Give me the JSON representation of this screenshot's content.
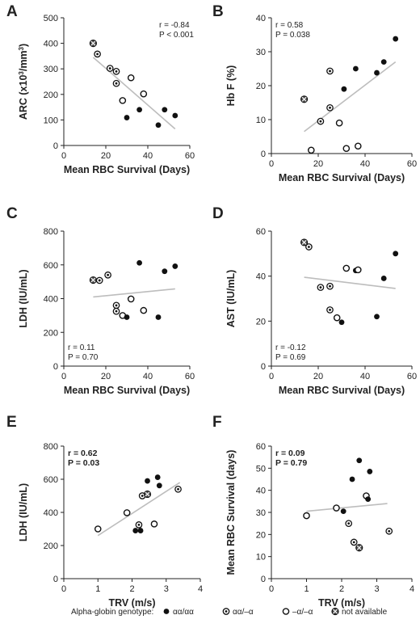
{
  "legend": {
    "title": "Alpha-globin genotype:",
    "items": [
      {
        "key": "aa_aa",
        "label": "αα/αα"
      },
      {
        "key": "aa_a",
        "label": "αα/–α"
      },
      {
        "key": "a_a",
        "label": "–α/–α"
      },
      {
        "key": "na",
        "label": "not available"
      }
    ]
  },
  "chart_data": [
    {
      "panel": "A",
      "type": "scatter",
      "xlabel": "Mean RBC Survival (Days)",
      "ylabel_parts": [
        "ARC (x10",
        "3",
        "/mm",
        "3",
        ")"
      ],
      "xlim": [
        0,
        60
      ],
      "ylim": [
        0,
        500
      ],
      "xticks": [
        0,
        20,
        40,
        60
      ],
      "yticks": [
        0,
        100,
        200,
        300,
        400,
        500
      ],
      "stats": [
        "r  = -0.84",
        "P < 0.001"
      ],
      "stats_position": "top-right",
      "stats_bold": false,
      "fit": [
        [
          14,
          345
        ],
        [
          53,
          65
        ]
      ],
      "points": [
        {
          "x": 14,
          "y": 400,
          "g": "na"
        },
        {
          "x": 16,
          "y": 358,
          "g": "aa_a"
        },
        {
          "x": 22,
          "y": 302,
          "g": "aa_a"
        },
        {
          "x": 25,
          "y": 290,
          "g": "aa_a"
        },
        {
          "x": 25,
          "y": 243,
          "g": "aa_a"
        },
        {
          "x": 28,
          "y": 176,
          "g": "a_a"
        },
        {
          "x": 30,
          "y": 109,
          "g": "aa_aa"
        },
        {
          "x": 32,
          "y": 265,
          "g": "a_a"
        },
        {
          "x": 36,
          "y": 140,
          "g": "aa_aa"
        },
        {
          "x": 38,
          "y": 202,
          "g": "a_a"
        },
        {
          "x": 45,
          "y": 80,
          "g": "aa_aa"
        },
        {
          "x": 48,
          "y": 140,
          "g": "aa_aa"
        },
        {
          "x": 53,
          "y": 117,
          "g": "aa_aa"
        }
      ]
    },
    {
      "panel": "B",
      "type": "scatter",
      "xlabel": "Mean RBC Survival (Days)",
      "ylabel_parts": [
        "Hb F (%)"
      ],
      "xlim": [
        0,
        60
      ],
      "ylim": [
        0,
        40
      ],
      "xticks": [
        0,
        20,
        40,
        60
      ],
      "yticks": [
        0,
        10,
        20,
        30,
        40
      ],
      "stats": [
        "r  = 0.58",
        "P = 0.038"
      ],
      "stats_position": "top-left",
      "stats_bold": false,
      "fit": [
        [
          14,
          6.5
        ],
        [
          53,
          27
        ]
      ],
      "points": [
        {
          "x": 14,
          "y": 16,
          "g": "na"
        },
        {
          "x": 17,
          "y": 1,
          "g": "a_a"
        },
        {
          "x": 21,
          "y": 9.5,
          "g": "aa_a"
        },
        {
          "x": 25,
          "y": 24.3,
          "g": "aa_a"
        },
        {
          "x": 25,
          "y": 13.5,
          "g": "aa_a"
        },
        {
          "x": 29,
          "y": 9,
          "g": "a_a"
        },
        {
          "x": 31,
          "y": 19,
          "g": "aa_aa"
        },
        {
          "x": 32,
          "y": 1.5,
          "g": "a_a"
        },
        {
          "x": 36,
          "y": 25,
          "g": "aa_aa"
        },
        {
          "x": 37,
          "y": 2.2,
          "g": "a_a"
        },
        {
          "x": 45,
          "y": 23.8,
          "g": "aa_aa"
        },
        {
          "x": 48,
          "y": 27,
          "g": "aa_aa"
        },
        {
          "x": 53,
          "y": 33.8,
          "g": "aa_aa"
        }
      ]
    },
    {
      "panel": "C",
      "type": "scatter",
      "xlabel": "Mean RBC Survival (Days)",
      "ylabel_parts": [
        "LDH (IU/mL)"
      ],
      "xlim": [
        0,
        60
      ],
      "ylim": [
        0,
        800
      ],
      "xticks": [
        0,
        20,
        40,
        60
      ],
      "yticks": [
        0,
        200,
        400,
        600,
        800
      ],
      "stats": [
        "r  = 0.11",
        "P = 0.70"
      ],
      "stats_position": "bottom-left",
      "stats_bold": false,
      "fit": [
        [
          14,
          410
        ],
        [
          53,
          458
        ]
      ],
      "points": [
        {
          "x": 14,
          "y": 510,
          "g": "na"
        },
        {
          "x": 17,
          "y": 508,
          "g": "aa_a"
        },
        {
          "x": 21,
          "y": 540,
          "g": "aa_a"
        },
        {
          "x": 25,
          "y": 360,
          "g": "aa_a"
        },
        {
          "x": 25,
          "y": 325,
          "g": "aa_a"
        },
        {
          "x": 28,
          "y": 300,
          "g": "a_a"
        },
        {
          "x": 30,
          "y": 290,
          "g": "aa_aa"
        },
        {
          "x": 32,
          "y": 398,
          "g": "a_a"
        },
        {
          "x": 36,
          "y": 612,
          "g": "aa_aa"
        },
        {
          "x": 38,
          "y": 330,
          "g": "a_a"
        },
        {
          "x": 45,
          "y": 290,
          "g": "aa_aa"
        },
        {
          "x": 48,
          "y": 562,
          "g": "aa_aa"
        },
        {
          "x": 53,
          "y": 592,
          "g": "aa_aa"
        }
      ]
    },
    {
      "panel": "D",
      "type": "scatter",
      "xlabel": "Mean RBC Survival (Days)",
      "ylabel_parts": [
        "AST (IU/mL)"
      ],
      "xlim": [
        0,
        60
      ],
      "ylim": [
        0,
        60
      ],
      "xticks": [
        0,
        20,
        40,
        60
      ],
      "yticks": [
        0,
        20,
        40,
        60
      ],
      "stats": [
        "r  = -0.12",
        "P = 0.69"
      ],
      "stats_position": "bottom-left",
      "stats_bold": false,
      "fit": [
        [
          14,
          39.5
        ],
        [
          53,
          34.5
        ]
      ],
      "points": [
        {
          "x": 14,
          "y": 55,
          "g": "na"
        },
        {
          "x": 16,
          "y": 53,
          "g": "aa_a"
        },
        {
          "x": 21,
          "y": 35,
          "g": "aa_a"
        },
        {
          "x": 25,
          "y": 35.5,
          "g": "aa_a"
        },
        {
          "x": 25,
          "y": 25,
          "g": "aa_a"
        },
        {
          "x": 28,
          "y": 21.5,
          "g": "a_a"
        },
        {
          "x": 30,
          "y": 19.5,
          "g": "aa_aa"
        },
        {
          "x": 32,
          "y": 43.5,
          "g": "a_a"
        },
        {
          "x": 36,
          "y": 42.5,
          "g": "aa_aa"
        },
        {
          "x": 37,
          "y": 42.8,
          "g": "a_a"
        },
        {
          "x": 45,
          "y": 22,
          "g": "aa_aa"
        },
        {
          "x": 48,
          "y": 39,
          "g": "aa_aa"
        },
        {
          "x": 53,
          "y": 50,
          "g": "aa_aa"
        }
      ]
    },
    {
      "panel": "E",
      "type": "scatter",
      "xlabel": "TRV (m/s)",
      "ylabel_parts": [
        "LDH (IU/mL)"
      ],
      "xlim": [
        0,
        4
      ],
      "ylim": [
        0,
        800
      ],
      "xticks": [
        0,
        1,
        2,
        3,
        4
      ],
      "yticks": [
        0,
        200,
        400,
        600,
        800
      ],
      "stats": [
        "r  = 0.62",
        "P = 0.03"
      ],
      "stats_position": "top-left",
      "stats_bold": true,
      "fit": [
        [
          1,
          260
        ],
        [
          3.4,
          580
        ]
      ],
      "points": [
        {
          "x": 1.0,
          "y": 300,
          "g": "a_a"
        },
        {
          "x": 1.85,
          "y": 398,
          "g": "a_a"
        },
        {
          "x": 2.1,
          "y": 290,
          "g": "aa_aa"
        },
        {
          "x": 2.2,
          "y": 325,
          "g": "aa_a"
        },
        {
          "x": 2.25,
          "y": 290,
          "g": "aa_aa"
        },
        {
          "x": 2.3,
          "y": 500,
          "g": "aa_a"
        },
        {
          "x": 2.45,
          "y": 510,
          "g": "na"
        },
        {
          "x": 2.45,
          "y": 590,
          "g": "aa_aa"
        },
        {
          "x": 2.65,
          "y": 330,
          "g": "a_a"
        },
        {
          "x": 2.75,
          "y": 612,
          "g": "aa_aa"
        },
        {
          "x": 2.8,
          "y": 562,
          "g": "aa_aa"
        },
        {
          "x": 3.35,
          "y": 540,
          "g": "aa_a"
        }
      ]
    },
    {
      "panel": "F",
      "type": "scatter",
      "xlabel": "TRV (m/s)",
      "ylabel_parts": [
        "Mean RBC Survival (days)"
      ],
      "xlim": [
        0,
        4
      ],
      "ylim": [
        0,
        60
      ],
      "xticks": [
        0,
        1,
        2,
        3,
        4
      ],
      "yticks": [
        0,
        10,
        20,
        30,
        40,
        50,
        60
      ],
      "stats": [
        "r  = 0.09",
        "P = 0.79"
      ],
      "stats_position": "top-left",
      "stats_bold": true,
      "fit": [
        [
          1,
          30.5
        ],
        [
          3.3,
          34
        ]
      ],
      "points": [
        {
          "x": 1.0,
          "y": 28.5,
          "g": "a_a"
        },
        {
          "x": 1.85,
          "y": 32,
          "g": "a_a"
        },
        {
          "x": 2.05,
          "y": 30.5,
          "g": "aa_aa"
        },
        {
          "x": 2.2,
          "y": 25,
          "g": "aa_a"
        },
        {
          "x": 2.3,
          "y": 45,
          "g": "aa_aa"
        },
        {
          "x": 2.35,
          "y": 16.5,
          "g": "aa_a"
        },
        {
          "x": 2.5,
          "y": 53.5,
          "g": "aa_aa"
        },
        {
          "x": 2.5,
          "y": 14,
          "g": "na"
        },
        {
          "x": 2.7,
          "y": 37.5,
          "g": "a_a"
        },
        {
          "x": 2.75,
          "y": 36,
          "g": "aa_aa"
        },
        {
          "x": 2.8,
          "y": 48.5,
          "g": "aa_aa"
        },
        {
          "x": 3.35,
          "y": 21.5,
          "g": "aa_a"
        }
      ]
    }
  ]
}
